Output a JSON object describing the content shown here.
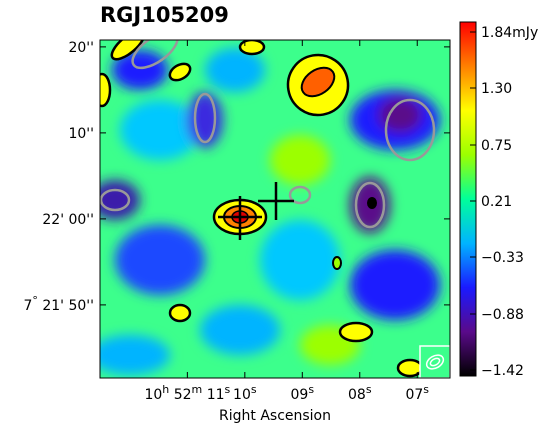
{
  "chart_data": {
    "type": "heatmap",
    "title": "RGJ105209",
    "xlabel": "Right Ascension",
    "xlim": [
      12.52,
      6.43
    ],
    "xticks": [
      {
        "value": 11,
        "label": "10h 52m 11s"
      },
      {
        "value": 10,
        "label": "10s"
      },
      {
        "value": 9,
        "label": "09s"
      },
      {
        "value": 8,
        "label": "08s"
      },
      {
        "value": 7,
        "label": "07s"
      }
    ],
    "ylim": [
      -18.5,
      20.8
    ],
    "yticks": [
      {
        "value": 20,
        "label": "20''"
      },
      {
        "value": 10,
        "label": "10''"
      },
      {
        "value": 0,
        "label": "22' 00''"
      },
      {
        "value": -10,
        "label": "7° 21' 50''"
      }
    ],
    "clim": [
      -1.42,
      1.84
    ],
    "colormap": [
      "#000000",
      "#5a0a8a",
      "#1a1aff",
      "#00b4ff",
      "#00ff9a",
      "#9cff00",
      "#ffff00",
      "#ff8000",
      "#ff0000"
    ],
    "cticks": [
      {
        "value": 1.84,
        "label": "1.84mJy"
      },
      {
        "value": 1.3,
        "label": "1.30"
      },
      0.75,
      0.21,
      {
        "value": -0.33,
        "label": "−0.33"
      },
      {
        "value": -0.88,
        "label": "−0.88"
      },
      {
        "value": -1.42,
        "label": "−1.42"
      }
    ]
  }
}
